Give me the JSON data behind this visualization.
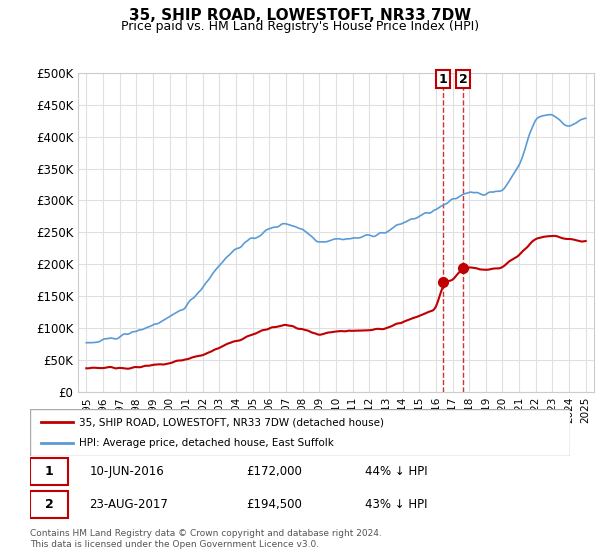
{
  "title": "35, SHIP ROAD, LOWESTOFT, NR33 7DW",
  "subtitle": "Price paid vs. HM Land Registry's House Price Index (HPI)",
  "ylabel": "",
  "ylim": [
    0,
    500000
  ],
  "yticks": [
    0,
    50000,
    100000,
    150000,
    200000,
    250000,
    300000,
    350000,
    400000,
    450000,
    500000
  ],
  "ytick_labels": [
    "£0",
    "£50K",
    "£100K",
    "£150K",
    "£200K",
    "£250K",
    "£300K",
    "£350K",
    "£400K",
    "£450K",
    "£500K"
  ],
  "hpi_color": "#5b9bd5",
  "price_color": "#c00000",
  "sale1_date": 2016.44,
  "sale1_price": 172000,
  "sale2_date": 2017.64,
  "sale2_price": 194500,
  "legend_line1": "35, SHIP ROAD, LOWESTOFT, NR33 7DW (detached house)",
  "legend_line2": "HPI: Average price, detached house, East Suffolk",
  "annotation1": "10-JUN-2016    £172,000       44% ↓ HPI",
  "annotation2": "23-AUG-2017    £194,500       43% ↓ HPI",
  "footer": "Contains HM Land Registry data © Crown copyright and database right 2024.\nThis data is licensed under the Open Government Licence v3.0.",
  "bg_color": "#ffffff",
  "grid_color": "#e0e0e0"
}
